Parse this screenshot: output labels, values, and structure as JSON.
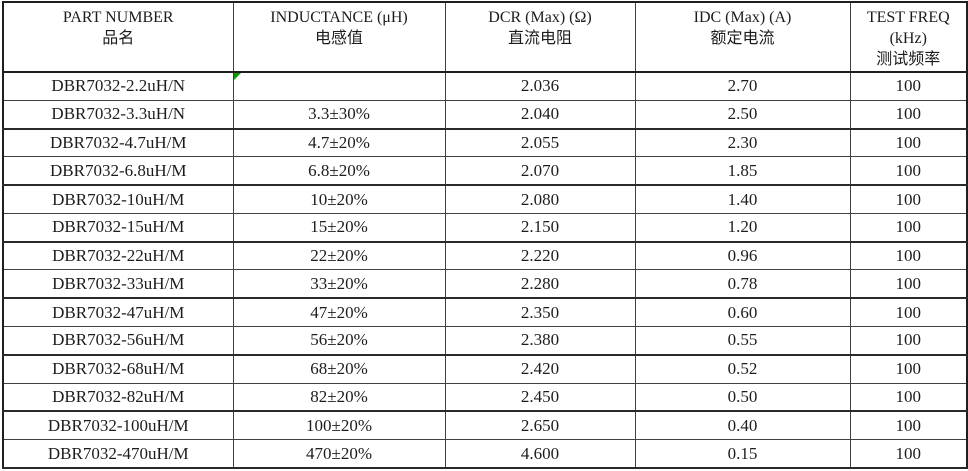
{
  "colors": {
    "flag_green": "#0a9a0a",
    "border": "#404040",
    "border_strong": "#1e1e1e",
    "text": "#1c1c1c"
  },
  "table": {
    "columns": [
      {
        "lines": [
          "PART NUMBER",
          "品名"
        ]
      },
      {
        "lines": [
          "INDUCTANCE (μH)",
          "电感值"
        ]
      },
      {
        "lines": [
          "DCR (Max) (Ω)",
          "直流电阻"
        ]
      },
      {
        "lines": [
          "IDC (Max) (A)",
          "额定电流"
        ]
      },
      {
        "lines": [
          "TEST FREQ",
          "(kHz)",
          "测试频率"
        ]
      }
    ],
    "rows": [
      {
        "part": "DBR7032-2.2uH/N",
        "inductance": "",
        "dcr": "2.036",
        "idc": "2.70",
        "freq": "100",
        "flag": true
      },
      {
        "part": "DBR7032-3.3uH/N",
        "inductance": "3.3±30%",
        "dcr": "2.040",
        "idc": "2.50",
        "freq": "100"
      },
      {
        "part": "DBR7032-4.7uH/M",
        "inductance": "4.7±20%",
        "dcr": "2.055",
        "idc": "2.30",
        "freq": "100"
      },
      {
        "part": "DBR7032-6.8uH/M",
        "inductance": "6.8±20%",
        "dcr": "2.070",
        "idc": "1.85",
        "freq": "100"
      },
      {
        "part": "DBR7032-10uH/M",
        "inductance": "10±20%",
        "dcr": "2.080",
        "idc": "1.40",
        "freq": "100"
      },
      {
        "part": "DBR7032-15uH/M",
        "inductance": "15±20%",
        "dcr": "2.150",
        "idc": "1.20",
        "freq": "100"
      },
      {
        "part": "DBR7032-22uH/M",
        "inductance": "22±20%",
        "dcr": "2.220",
        "idc": "0.96",
        "freq": "100"
      },
      {
        "part": "DBR7032-33uH/M",
        "inductance": "33±20%",
        "dcr": "2.280",
        "idc": "0.78",
        "freq": "100"
      },
      {
        "part": "DBR7032-47uH/M",
        "inductance": "47±20%",
        "dcr": "2.350",
        "idc": "0.60",
        "freq": "100"
      },
      {
        "part": "DBR7032-56uH/M",
        "inductance": "56±20%",
        "dcr": "2.380",
        "idc": "0.55",
        "freq": "100"
      },
      {
        "part": "DBR7032-68uH/M",
        "inductance": "68±20%",
        "dcr": "2.420",
        "idc": "0.52",
        "freq": "100"
      },
      {
        "part": "DBR7032-82uH/M",
        "inductance": "82±20%",
        "dcr": "2.450",
        "idc": "0.50",
        "freq": "100"
      },
      {
        "part": "DBR7032-100uH/M",
        "inductance": "100±20%",
        "dcr": "2.650",
        "idc": "0.40",
        "freq": "100"
      },
      {
        "part": "DBR7032-470uH/M",
        "inductance": "470±20%",
        "dcr": "4.600",
        "idc": "0.15",
        "freq": "100"
      }
    ]
  }
}
